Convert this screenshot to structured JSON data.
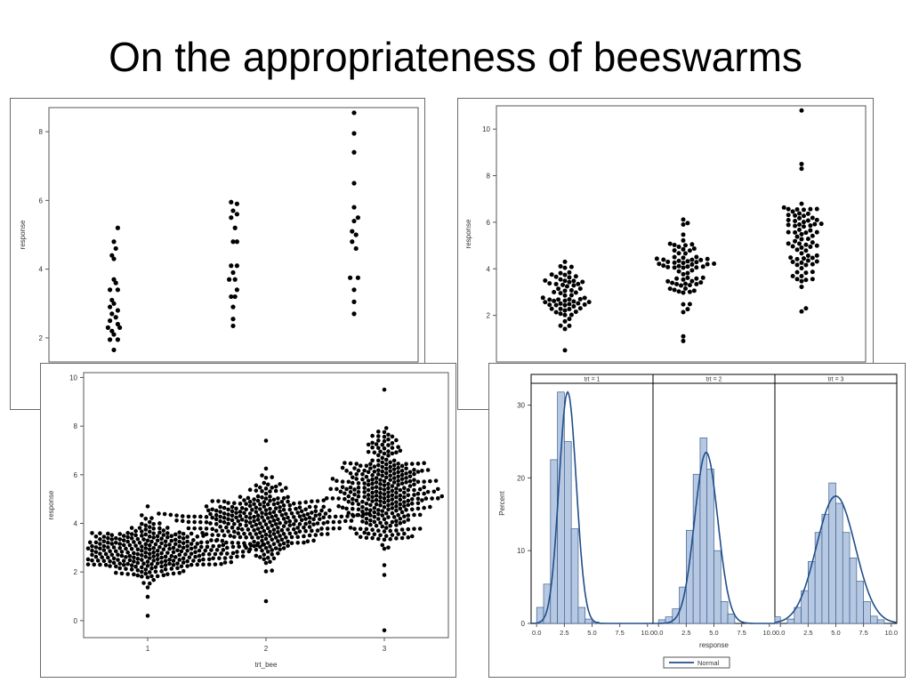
{
  "page": {
    "title": "On the appropriateness of beeswarms"
  },
  "chart_data": [
    {
      "id": "panel-a",
      "type": "scatter",
      "ylabel": "response",
      "xlabel": "",
      "ylim": [
        1.3,
        8.7
      ],
      "yticks": [
        2,
        4,
        6,
        8
      ],
      "groups": [
        {
          "x": 1,
          "points": [
            [
              1.02,
              5.2
            ],
            [
              1.0,
              4.8
            ],
            [
              1.01,
              4.6
            ],
            [
              0.99,
              4.4
            ],
            [
              1.0,
              4.3
            ],
            [
              1.0,
              3.7
            ],
            [
              1.01,
              3.6
            ],
            [
              0.98,
              3.4
            ],
            [
              1.02,
              3.4
            ],
            [
              0.99,
              3.1
            ],
            [
              1.0,
              3.0
            ],
            [
              0.98,
              2.9
            ],
            [
              1.02,
              2.8
            ],
            [
              0.99,
              2.7
            ],
            [
              1.01,
              2.6
            ],
            [
              0.98,
              2.5
            ],
            [
              1.02,
              2.4
            ],
            [
              0.97,
              2.3
            ],
            [
              1.03,
              2.3
            ],
            [
              0.99,
              2.2
            ],
            [
              1.0,
              2.1
            ],
            [
              0.98,
              1.95
            ],
            [
              1.02,
              1.95
            ],
            [
              1.0,
              1.65
            ]
          ]
        },
        {
          "x": 2,
          "points": [
            [
              1.99,
              5.95
            ],
            [
              2.02,
              5.9
            ],
            [
              2.0,
              5.7
            ],
            [
              2.02,
              5.6
            ],
            [
              1.99,
              5.5
            ],
            [
              2.01,
              5.2
            ],
            [
              2.0,
              4.8
            ],
            [
              2.02,
              4.8
            ],
            [
              1.99,
              4.1
            ],
            [
              2.02,
              4.1
            ],
            [
              2.0,
              3.9
            ],
            [
              1.98,
              3.7
            ],
            [
              2.01,
              3.7
            ],
            [
              2.02,
              3.4
            ],
            [
              1.99,
              3.2
            ],
            [
              2.01,
              3.2
            ],
            [
              2.0,
              2.9
            ],
            [
              2.0,
              2.55
            ],
            [
              2.0,
              2.35
            ]
          ]
        },
        {
          "x": 3,
          "points": [
            [
              3.0,
              8.55
            ],
            [
              3.0,
              7.95
            ],
            [
              3.0,
              7.4
            ],
            [
              3.0,
              6.5
            ],
            [
              3.0,
              5.8
            ],
            [
              3.02,
              5.5
            ],
            [
              3.0,
              5.4
            ],
            [
              2.99,
              5.1
            ],
            [
              3.01,
              5.0
            ],
            [
              2.99,
              4.8
            ],
            [
              3.01,
              4.6
            ],
            [
              2.98,
              3.75
            ],
            [
              3.02,
              3.75
            ],
            [
              3.0,
              3.4
            ],
            [
              3.0,
              3.05
            ],
            [
              3.0,
              2.7
            ]
          ]
        }
      ]
    },
    {
      "id": "panel-b",
      "type": "scatter",
      "ylabel": "response",
      "xlabel": "",
      "ylim": [
        0,
        11
      ],
      "yticks": [
        2,
        4,
        6,
        8,
        10
      ],
      "groups": [
        {
          "x": 1,
          "center": 2.8,
          "spread": 0.75,
          "count": 65,
          "outliers": [
            0.5,
            4.3
          ]
        },
        {
          "x": 2,
          "center": 4.0,
          "spread": 1.0,
          "count": 70,
          "outliers": [
            0.9,
            1.1,
            5.9
          ]
        },
        {
          "x": 3,
          "center": 5.3,
          "spread": 1.3,
          "count": 75,
          "outliers": [
            10.8,
            8.5,
            8.3,
            2.3
          ]
        }
      ]
    },
    {
      "id": "panel-c",
      "type": "scatter",
      "ylabel": "response",
      "xlabel": "trt_bee",
      "xticks": [
        1,
        2,
        3
      ],
      "ylim": [
        -0.7,
        10.2
      ],
      "yticks": [
        0,
        2,
        4,
        6,
        8,
        10
      ],
      "groups": [
        {
          "x": 1,
          "center": 2.85,
          "spread": 0.75,
          "count": 330,
          "min": 0.2,
          "max": 4.7
        },
        {
          "x": 2,
          "center": 4.1,
          "spread": 1.0,
          "count": 330,
          "min": 0.8,
          "max": 7.4
        },
        {
          "x": 3,
          "center": 5.2,
          "spread": 1.5,
          "count": 330,
          "min": -0.4,
          "max": 9.5
        }
      ]
    },
    {
      "id": "panel-d",
      "type": "bar",
      "ylabel": "Percent",
      "xlabel": "response",
      "ylim": [
        0,
        33
      ],
      "yticks": [
        0,
        10,
        20,
        30
      ],
      "xticks": [
        "0.0",
        "2.5",
        "5.0",
        "7.5",
        "10.0"
      ],
      "xrange": [
        -0.5,
        10.5
      ],
      "bin_width": 0.625,
      "legend": {
        "label": "Normal",
        "position": "bottom"
      },
      "facets": [
        {
          "label": "trt = 1",
          "bin_start": 0.0,
          "values": [
            2.2,
            5.4,
            22.5,
            31.8,
            25.0,
            13.0,
            2.2,
            0.6,
            0.2,
            0,
            0,
            0,
            0,
            0,
            0,
            0
          ],
          "normal": {
            "mean": 2.8,
            "sd": 0.78,
            "peak": 31.8
          }
        },
        {
          "label": "trt = 2",
          "bin_start": 0.0,
          "values": [
            0.5,
            0.9,
            2.0,
            5.0,
            12.8,
            20.5,
            25.5,
            21.2,
            10.0,
            3.0,
            1.3,
            0,
            0,
            0,
            0,
            0
          ],
          "normal": {
            "mean": 4.3,
            "sd": 1.05,
            "peak": 23.5
          }
        },
        {
          "label": "trt = 3",
          "bin_start": -0.625,
          "values": [
            0.9,
            0,
            0.6,
            2.2,
            4.5,
            8.5,
            12.5,
            15.0,
            19.3,
            16.5,
            12.5,
            9.0,
            5.8,
            3.0,
            1.0,
            0.5
          ],
          "normal": {
            "mean": 5.0,
            "sd": 1.75,
            "peak": 17.5
          }
        }
      ]
    }
  ]
}
